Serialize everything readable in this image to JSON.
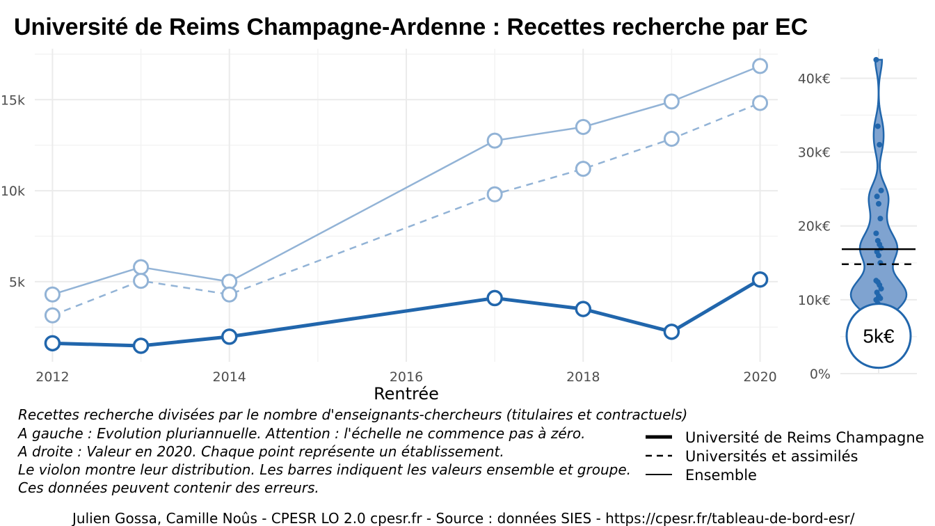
{
  "title": "Université de Reims Champagne-Ardenne  :  Recettes recherche par EC",
  "colors": {
    "dark": "#2166ac",
    "light": "#92b3d6",
    "violin_fill": "#7fa3d0",
    "grid": "#ebebeb"
  },
  "chart_data": [
    {
      "type": "line",
      "xlabel": "Rentrée",
      "ylabel": "",
      "xlim": [
        2011.8,
        2020.2
      ],
      "ylim": [
        600,
        17800
      ],
      "x_ticks": [
        2012,
        2014,
        2016,
        2018,
        2020
      ],
      "x_tick_labels": [
        "2012",
        "2014",
        "2016",
        "2018",
        "2020"
      ],
      "y_ticks": [
        5000,
        10000,
        15000
      ],
      "y_tick_labels": [
        "5k",
        "10k",
        "15k"
      ],
      "grid": true,
      "series": [
        {
          "name": "Université de Reims Champagne",
          "style": "solid-thick",
          "x": [
            2012,
            2013,
            2014,
            2017,
            2018,
            2019,
            2020
          ],
          "y": [
            1620,
            1480,
            1980,
            4100,
            3500,
            2250,
            5120
          ]
        },
        {
          "name": "Universités et assimilés",
          "style": "dashed",
          "x": [
            2012,
            2013,
            2014,
            2017,
            2018,
            2019,
            2020
          ],
          "y": [
            3150,
            5050,
            4300,
            9800,
            11200,
            12850,
            14820
          ]
        },
        {
          "name": "Ensemble",
          "style": "solid-thin",
          "x": [
            2012,
            2013,
            2014,
            2017,
            2018,
            2019,
            2020
          ],
          "y": [
            4300,
            5800,
            5000,
            12750,
            13500,
            14900,
            16850
          ]
        }
      ]
    },
    {
      "type": "violin",
      "ylim": [
        0,
        44000
      ],
      "y_ticks": [
        0,
        10000,
        20000,
        30000,
        40000
      ],
      "y_tick_labels": [
        "0%",
        "10k€",
        "20k€",
        "30k€",
        "40k€"
      ],
      "points": [
        42500,
        33500,
        31000,
        24800,
        24000,
        23000,
        21000,
        19000,
        18000,
        17500,
        17000,
        16500,
        16000,
        15000,
        12600,
        12400,
        12000,
        11500,
        11000,
        10500,
        10200,
        10000,
        9500,
        9000,
        8500
      ],
      "hlines": [
        {
          "value": 16850,
          "style": "solid"
        },
        {
          "value": 14820,
          "style": "dashed"
        }
      ],
      "highlight": {
        "value": 5120,
        "label": "5k€"
      }
    }
  ],
  "notes": [
    "Recettes recherche divisées par le nombre d'enseignants-chercheurs (titulaires et contractuels)",
    "A gauche : Evolution pluriannuelle. Attention : l'échelle ne commence pas à zéro.",
    "A droite : Valeur en 2020. Chaque point représente un établissement.",
    "Le violon montre leur distribution. Les barres indiquent les valeurs ensemble et groupe.",
    "Ces données peuvent contenir des erreurs."
  ],
  "legend": [
    {
      "label": "Université de Reims Champagne",
      "style": "solid-thick"
    },
    {
      "label": "Universités et assimilés",
      "style": "dashed"
    },
    {
      "label": "Ensemble",
      "style": "solid-thin"
    }
  ],
  "credit": "Julien Gossa, Camille Noûs - CPESR LO 2.0 cpesr.fr - Source : données SIES - https://cpesr.fr/tableau-de-bord-esr/"
}
